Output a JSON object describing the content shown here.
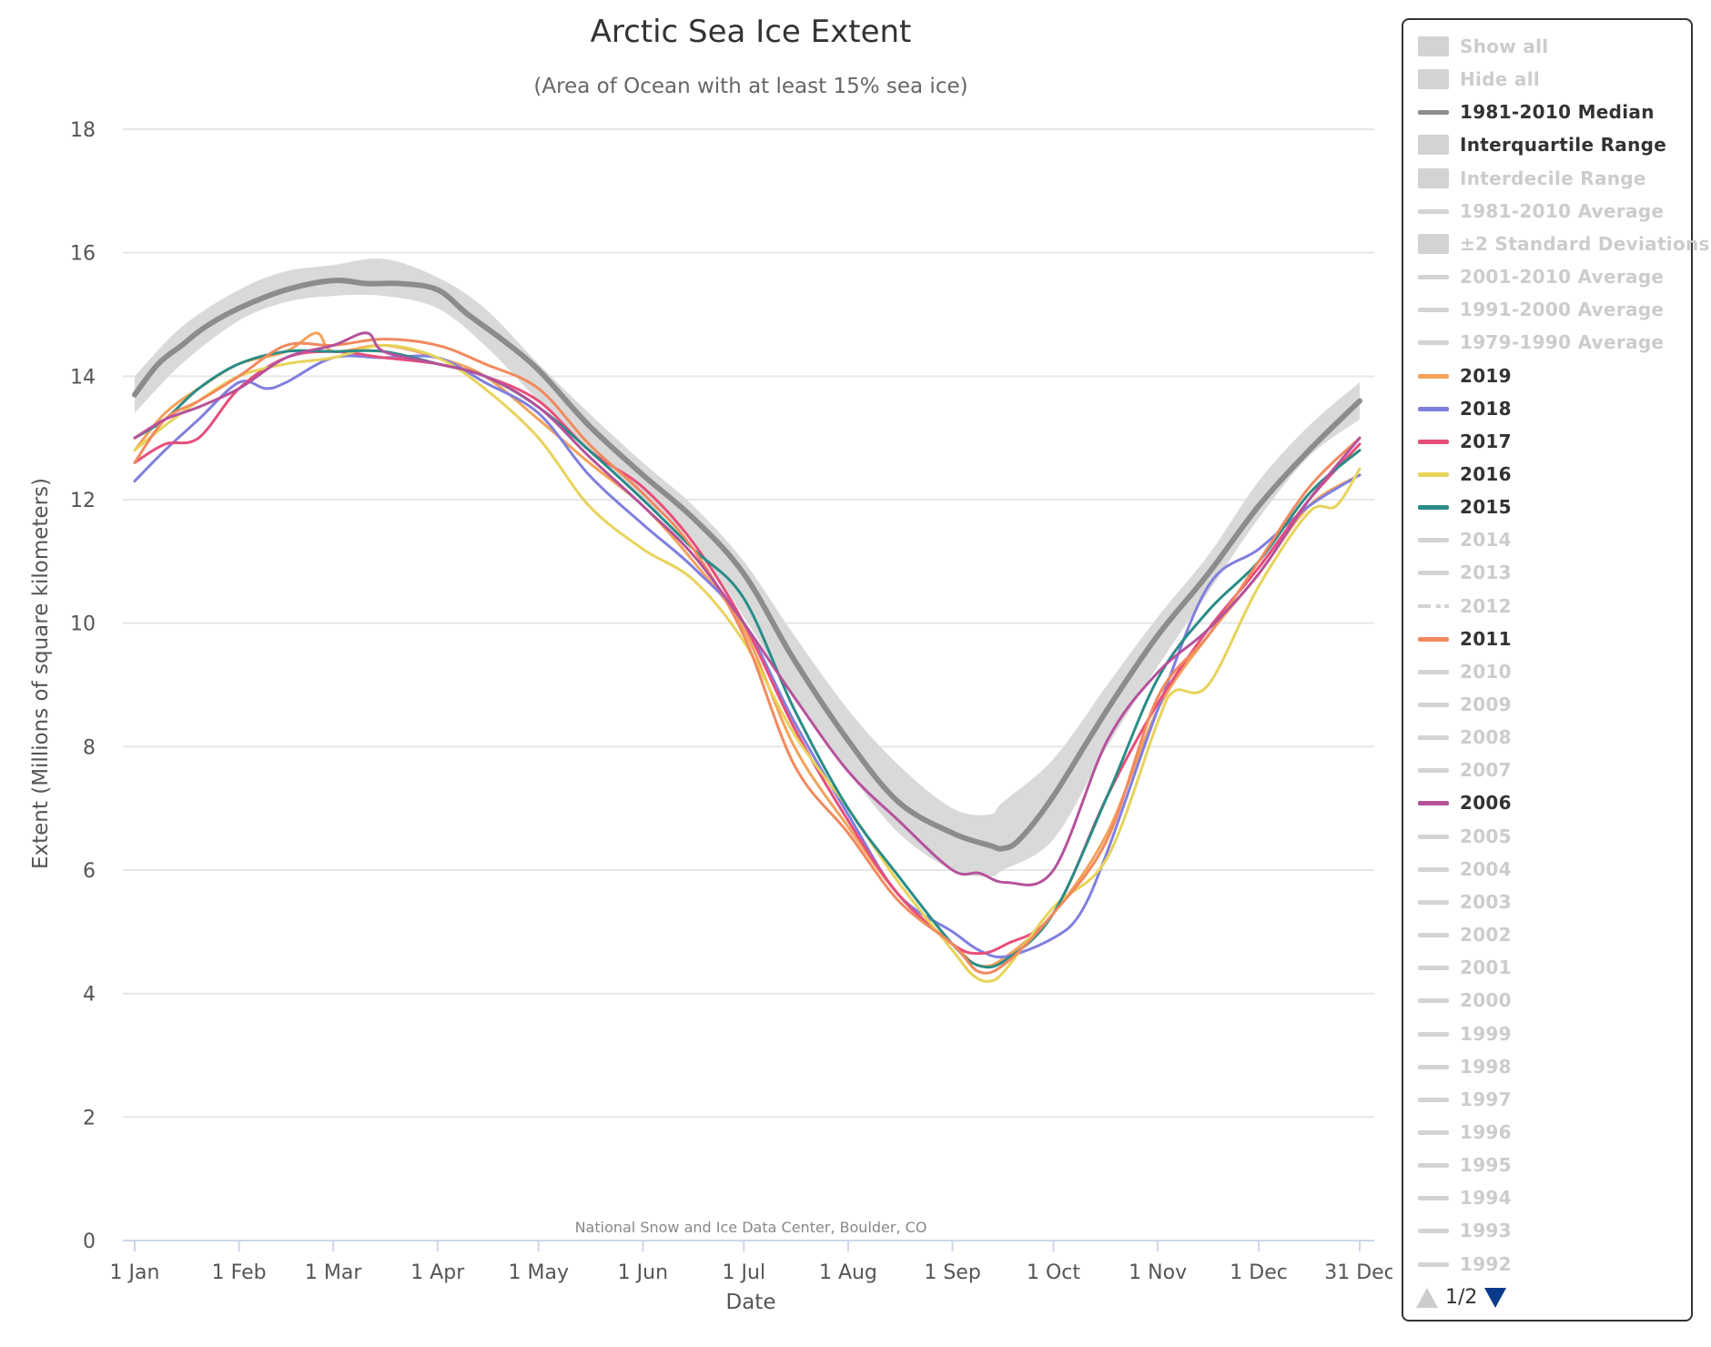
{
  "chart_data": {
    "type": "line",
    "title": "Arctic Sea Ice Extent",
    "subtitle": "(Area of Ocean with at least 15% sea ice)",
    "xlabel": "Date",
    "ylabel": "Extent (Millions of square kilometers)",
    "credit": "National Snow and Ice Data Center, Boulder, CO",
    "x_unit": "day of year",
    "xlim": [
      1,
      365
    ],
    "ylim": [
      0,
      18
    ],
    "y_ticks": [
      0,
      2,
      4,
      6,
      8,
      10,
      12,
      14,
      16,
      18
    ],
    "x_ticks": [
      {
        "day": 1,
        "label": "1 Jan"
      },
      {
        "day": 32,
        "label": "1 Feb"
      },
      {
        "day": 60,
        "label": "1 Mar"
      },
      {
        "day": 91,
        "label": "1 Apr"
      },
      {
        "day": 121,
        "label": "1 May"
      },
      {
        "day": 152,
        "label": "1 Jun"
      },
      {
        "day": 182,
        "label": "1 Jul"
      },
      {
        "day": 213,
        "label": "1 Aug"
      },
      {
        "day": 244,
        "label": "1 Sep"
      },
      {
        "day": 274,
        "label": "1 Oct"
      },
      {
        "day": 305,
        "label": "1 Nov"
      },
      {
        "day": 335,
        "label": "1 Dec"
      },
      {
        "day": 365,
        "label": "31 Dec"
      }
    ],
    "grid": true,
    "legend_position": "right",
    "interquartile_range": {
      "name": "Interquartile Range",
      "color": "#d9d9d9",
      "days": [
        1,
        15,
        32,
        46,
        60,
        75,
        91,
        105,
        121,
        136,
        152,
        167,
        182,
        197,
        213,
        228,
        244,
        255,
        259,
        274,
        290,
        305,
        320,
        335,
        350,
        365
      ],
      "low": [
        13.4,
        14.2,
        14.9,
        15.2,
        15.3,
        15.3,
        15.1,
        14.5,
        13.6,
        12.8,
        12.0,
        11.3,
        10.1,
        8.8,
        7.6,
        6.6,
        6.0,
        5.9,
        6.0,
        6.5,
        8.0,
        9.3,
        10.5,
        11.7,
        12.7,
        13.3
      ],
      "high": [
        14.0,
        14.8,
        15.4,
        15.7,
        15.8,
        15.9,
        15.6,
        15.1,
        14.2,
        13.4,
        12.6,
        11.9,
        11.0,
        9.8,
        8.6,
        7.7,
        7.0,
        6.9,
        7.1,
        7.8,
        9.0,
        10.1,
        11.1,
        12.3,
        13.2,
        13.9
      ]
    },
    "series": [
      {
        "name": "1981-2010 Median",
        "color": "#8c8c8c",
        "width": 6,
        "days": [
          1,
          8,
          15,
          22,
          32,
          46,
          60,
          70,
          80,
          91,
          100,
          110,
          121,
          136,
          152,
          167,
          182,
          197,
          213,
          228,
          244,
          255,
          259,
          264,
          274,
          290,
          305,
          320,
          335,
          350,
          365
        ],
        "values": [
          13.7,
          14.2,
          14.5,
          14.8,
          15.1,
          15.4,
          15.55,
          15.5,
          15.5,
          15.4,
          15.0,
          14.6,
          14.1,
          13.2,
          12.4,
          11.7,
          10.8,
          9.4,
          8.1,
          7.1,
          6.6,
          6.4,
          6.35,
          6.5,
          7.2,
          8.6,
          9.8,
          10.8,
          11.9,
          12.8,
          13.6
        ]
      },
      {
        "name": "2019",
        "color": "#f4a259",
        "width": 3,
        "days": [
          1,
          10,
          20,
          32,
          46,
          55,
          60,
          75,
          91,
          105,
          121,
          136,
          152,
          167,
          182,
          197,
          213,
          228,
          244,
          252,
          260,
          274,
          290,
          305,
          320,
          335,
          350,
          365
        ],
        "values": [
          12.8,
          13.4,
          13.8,
          14.2,
          14.4,
          14.7,
          14.4,
          14.5,
          14.3,
          14.0,
          13.3,
          12.6,
          11.9,
          11.0,
          9.9,
          8.0,
          6.7,
          5.6,
          4.8,
          4.45,
          4.6,
          5.3,
          6.6,
          8.6,
          9.8,
          10.8,
          11.9,
          12.4
        ]
      },
      {
        "name": "2018",
        "color": "#7f7fe0",
        "width": 3,
        "days": [
          1,
          10,
          20,
          32,
          40,
          46,
          60,
          75,
          91,
          105,
          121,
          136,
          152,
          167,
          182,
          197,
          213,
          228,
          244,
          252,
          260,
          274,
          282,
          290,
          305,
          320,
          335,
          350,
          365
        ],
        "values": [
          12.3,
          12.8,
          13.3,
          13.9,
          13.8,
          13.9,
          14.3,
          14.3,
          14.3,
          13.9,
          13.4,
          12.4,
          11.6,
          10.9,
          10.0,
          8.4,
          6.9,
          5.6,
          5.0,
          4.7,
          4.6,
          4.9,
          5.3,
          6.3,
          8.6,
          10.6,
          11.2,
          11.9,
          12.4
        ]
      },
      {
        "name": "2017",
        "color": "#e84e7a",
        "width": 3,
        "days": [
          1,
          10,
          20,
          32,
          46,
          60,
          75,
          91,
          105,
          121,
          136,
          152,
          167,
          182,
          197,
          213,
          228,
          244,
          252,
          260,
          274,
          290,
          305,
          320,
          335,
          350,
          365
        ],
        "values": [
          12.6,
          12.9,
          13.0,
          13.8,
          14.3,
          14.4,
          14.3,
          14.2,
          14.0,
          13.6,
          12.8,
          12.2,
          11.3,
          10.0,
          8.3,
          6.8,
          5.6,
          4.8,
          4.65,
          4.8,
          5.3,
          7.2,
          8.7,
          9.9,
          10.9,
          12.0,
          12.9
        ]
      },
      {
        "name": "2016",
        "color": "#e8d35a",
        "width": 3,
        "days": [
          1,
          10,
          20,
          32,
          46,
          60,
          75,
          91,
          105,
          121,
          136,
          152,
          167,
          182,
          197,
          213,
          228,
          244,
          250,
          255,
          260,
          274,
          290,
          305,
          310,
          320,
          335,
          350,
          358,
          365
        ],
        "values": [
          12.8,
          13.2,
          13.6,
          14.0,
          14.2,
          14.3,
          14.5,
          14.3,
          13.8,
          13.0,
          11.9,
          11.2,
          10.7,
          9.7,
          8.2,
          7.0,
          5.8,
          4.7,
          4.3,
          4.2,
          4.4,
          5.4,
          6.2,
          8.4,
          8.9,
          9.0,
          10.6,
          11.8,
          11.9,
          12.5
        ]
      },
      {
        "name": "2015",
        "color": "#2a8c87",
        "width": 3,
        "days": [
          1,
          10,
          20,
          32,
          46,
          60,
          75,
          91,
          105,
          121,
          136,
          152,
          167,
          182,
          197,
          213,
          228,
          244,
          252,
          260,
          274,
          290,
          305,
          320,
          335,
          350,
          365
        ],
        "values": [
          13.0,
          13.3,
          13.8,
          14.2,
          14.4,
          14.4,
          14.4,
          14.2,
          14.0,
          13.5,
          12.8,
          12.0,
          11.2,
          10.4,
          8.6,
          7.0,
          5.9,
          4.8,
          4.45,
          4.55,
          5.3,
          7.2,
          9.1,
          10.2,
          11.0,
          12.1,
          12.8
        ]
      },
      {
        "name": "2011",
        "color": "#f2895e",
        "width": 3,
        "days": [
          1,
          10,
          20,
          32,
          46,
          60,
          75,
          91,
          105,
          121,
          136,
          152,
          167,
          182,
          197,
          213,
          228,
          244,
          252,
          260,
          274,
          290,
          305,
          320,
          335,
          350,
          365
        ],
        "values": [
          12.6,
          13.3,
          13.6,
          14.0,
          14.5,
          14.5,
          14.6,
          14.5,
          14.2,
          13.8,
          12.9,
          12.1,
          11.2,
          9.8,
          7.7,
          6.6,
          5.5,
          4.8,
          4.35,
          4.5,
          5.3,
          6.5,
          8.8,
          9.8,
          11.0,
          12.2,
          13.0
        ]
      },
      {
        "name": "2006",
        "color": "#b5529c",
        "width": 3,
        "days": [
          1,
          10,
          20,
          32,
          46,
          60,
          70,
          75,
          91,
          105,
          121,
          136,
          152,
          167,
          182,
          197,
          213,
          228,
          244,
          252,
          260,
          274,
          290,
          305,
          320,
          335,
          350,
          365
        ],
        "values": [
          13.0,
          13.3,
          13.5,
          13.8,
          14.3,
          14.5,
          14.7,
          14.4,
          14.2,
          14.0,
          13.5,
          12.7,
          11.9,
          11.1,
          10.0,
          8.8,
          7.6,
          6.8,
          6.0,
          5.95,
          5.8,
          6.0,
          8.1,
          9.2,
          9.9,
          10.8,
          12.0,
          13.0
        ]
      }
    ]
  },
  "legend": {
    "items": [
      {
        "label": "Show all",
        "symbol": "box",
        "color": "#d3d3d3",
        "visible": false
      },
      {
        "label": "Hide all",
        "symbol": "box",
        "color": "#d3d3d3",
        "visible": false
      },
      {
        "label": "1981-2010 Median",
        "symbol": "line",
        "color": "#8c8c8c",
        "visible": true
      },
      {
        "label": "Interquartile Range",
        "symbol": "box",
        "color": "#d3d3d3",
        "visible": true
      },
      {
        "label": "Interdecile Range",
        "symbol": "box",
        "color": "#d3d3d3",
        "visible": false
      },
      {
        "label": "1981-2010 Average",
        "symbol": "line",
        "color": "#d3d3d3",
        "visible": false
      },
      {
        "label": "±2 Standard Deviations",
        "symbol": "box",
        "color": "#d3d3d3",
        "visible": false
      },
      {
        "label": "2001-2010 Average",
        "symbol": "line",
        "color": "#d3d3d3",
        "visible": false
      },
      {
        "label": "1991-2000 Average",
        "symbol": "line",
        "color": "#d3d3d3",
        "visible": false
      },
      {
        "label": "1979-1990 Average",
        "symbol": "line",
        "color": "#d3d3d3",
        "visible": false
      },
      {
        "label": "2019",
        "symbol": "line",
        "color": "#f4a259",
        "visible": true
      },
      {
        "label": "2018",
        "symbol": "line",
        "color": "#7f7fe0",
        "visible": true
      },
      {
        "label": "2017",
        "symbol": "line",
        "color": "#e84e7a",
        "visible": true
      },
      {
        "label": "2016",
        "symbol": "line",
        "color": "#e8d35a",
        "visible": true
      },
      {
        "label": "2015",
        "symbol": "line",
        "color": "#2a8c87",
        "visible": true
      },
      {
        "label": "2014",
        "symbol": "line",
        "color": "#d3d3d3",
        "visible": false
      },
      {
        "label": "2013",
        "symbol": "line",
        "color": "#d3d3d3",
        "visible": false
      },
      {
        "label": "2012",
        "symbol": "dash",
        "color": "#d3d3d3",
        "visible": false
      },
      {
        "label": "2011",
        "symbol": "line",
        "color": "#f2895e",
        "visible": true
      },
      {
        "label": "2010",
        "symbol": "line",
        "color": "#d3d3d3",
        "visible": false
      },
      {
        "label": "2009",
        "symbol": "line",
        "color": "#d3d3d3",
        "visible": false
      },
      {
        "label": "2008",
        "symbol": "line",
        "color": "#d3d3d3",
        "visible": false
      },
      {
        "label": "2007",
        "symbol": "line",
        "color": "#d3d3d3",
        "visible": false
      },
      {
        "label": "2006",
        "symbol": "line",
        "color": "#b5529c",
        "visible": true
      },
      {
        "label": "2005",
        "symbol": "line",
        "color": "#d3d3d3",
        "visible": false
      },
      {
        "label": "2004",
        "symbol": "line",
        "color": "#d3d3d3",
        "visible": false
      },
      {
        "label": "2003",
        "symbol": "line",
        "color": "#d3d3d3",
        "visible": false
      },
      {
        "label": "2002",
        "symbol": "line",
        "color": "#d3d3d3",
        "visible": false
      },
      {
        "label": "2001",
        "symbol": "line",
        "color": "#d3d3d3",
        "visible": false
      },
      {
        "label": "2000",
        "symbol": "line",
        "color": "#d3d3d3",
        "visible": false
      },
      {
        "label": "1999",
        "symbol": "line",
        "color": "#d3d3d3",
        "visible": false
      },
      {
        "label": "1998",
        "symbol": "line",
        "color": "#d3d3d3",
        "visible": false
      },
      {
        "label": "1997",
        "symbol": "line",
        "color": "#d3d3d3",
        "visible": false
      },
      {
        "label": "1996",
        "symbol": "line",
        "color": "#d3d3d3",
        "visible": false
      },
      {
        "label": "1995",
        "symbol": "line",
        "color": "#d3d3d3",
        "visible": false
      },
      {
        "label": "1994",
        "symbol": "line",
        "color": "#d3d3d3",
        "visible": false
      },
      {
        "label": "1993",
        "symbol": "line",
        "color": "#d3d3d3",
        "visible": false
      },
      {
        "label": "1992",
        "symbol": "line",
        "color": "#d3d3d3",
        "visible": false
      }
    ],
    "page_indicator": "1/2",
    "prev_icon": "triangle-up-icon",
    "next_icon": "triangle-down-icon"
  }
}
